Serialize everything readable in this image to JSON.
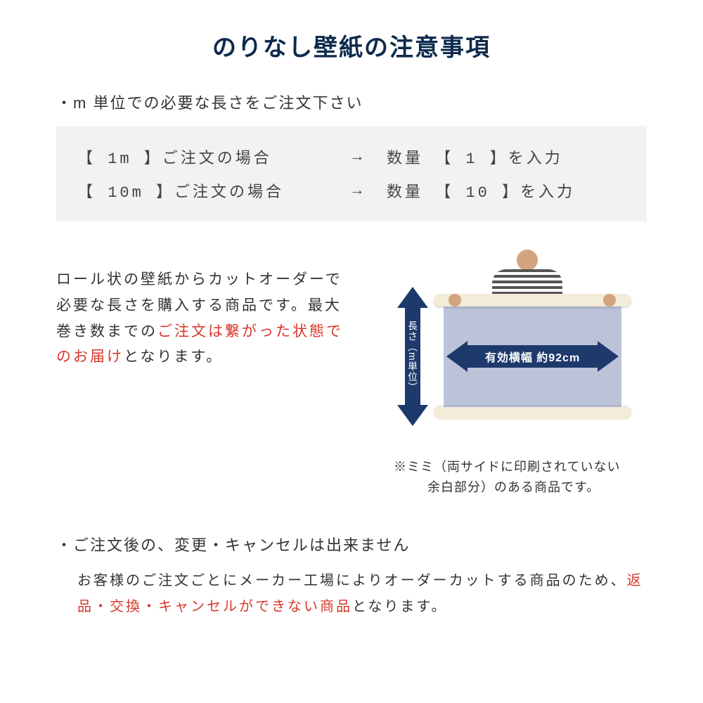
{
  "title": "のりなし壁紙の注意事項",
  "section1": {
    "header": "・m 単位での必要な長さをご注文下さい",
    "rows": [
      {
        "left": "【 1m 】ご注文の場合",
        "arrow": "→",
        "right": "数量 【 1 】を入力"
      },
      {
        "left": "【 10m 】ご注文の場合",
        "arrow": "→",
        "right": "数量 【 10 】を入力"
      }
    ]
  },
  "description": {
    "part1": "ロール状の壁紙からカットオーダーで必要な長さを購入する商品です。最大巻き数までの",
    "red": "ご注文は繋がった状態でのお届け",
    "part2": "となります。"
  },
  "diagram": {
    "vertical_label": "長さ（m単位）",
    "horizontal_label": "有効横幅 約92cm",
    "arrow_color": "#1e3a6c",
    "wallpaper_color": "#bcc3d9",
    "roll_color": "#f2ecd8"
  },
  "note": {
    "line1": "※ミミ（両サイドに印刷されていない",
    "line2": "余白部分）のある商品です。"
  },
  "section2": {
    "header": "・ご注文後の、変更・キャンセルは出来ません",
    "body_part1": "お客様のご注文ごとにメーカー工場によりオーダーカットする商品のため、",
    "body_red": "返品・交換・キャンセルができない商品",
    "body_part2": "となります。"
  },
  "colors": {
    "title_color": "#0d2a4c",
    "text_color": "#333333",
    "red_color": "#d9362a",
    "box_bg": "#f2f2f2",
    "arrow_color": "#1e3a6c"
  }
}
